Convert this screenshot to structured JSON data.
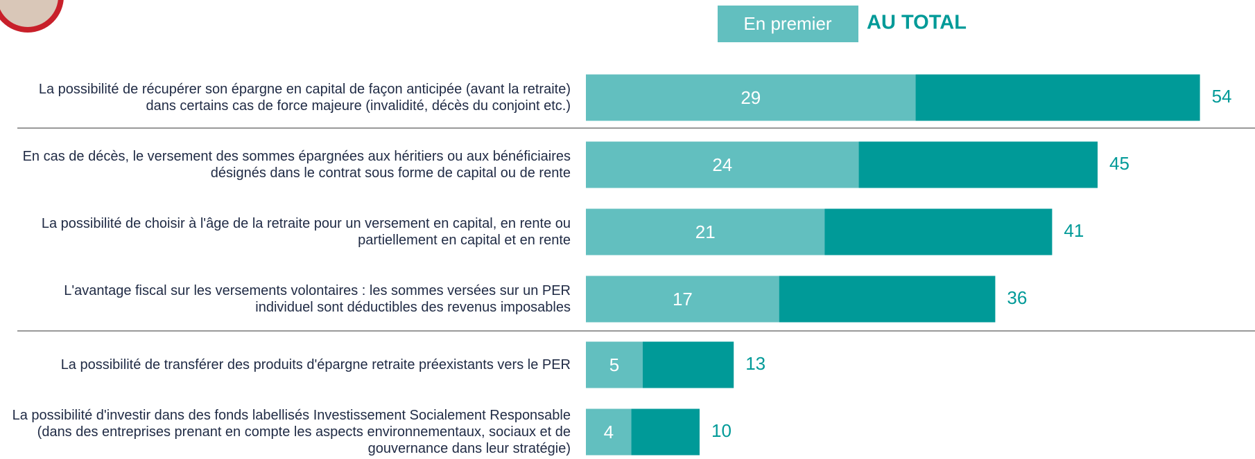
{
  "chart_data": {
    "type": "overlap-bar",
    "legend": [
      "En premier",
      "AU TOTAL"
    ],
    "categories": [
      "La possibilité de récupérer son épargne en capital de façon anticipée (avant la retraite) dans certains cas de force majeure (invalidité, décès du conjoint etc.)",
      "En cas de décès, le versement des sommes épargnées aux héritiers ou aux bénéficiaires désignés dans le contrat sous forme de capital ou de rente",
      "La possibilité de choisir à l'âge de la retraite pour un versement en capital, en rente ou partiellement en capital et en rente",
      "L'avantage fiscal sur les versements volontaires : les sommes versées sur un PER individuel sont déductibles des revenus imposables",
      "La possibilité de transférer des produits d'épargne retraite préexistants vers le PER",
      "La possibilité d'investir dans des fonds labellisés Investissement Socialement Responsable (dans des entreprises prenant en compte les aspects environnementaux, sociaux et de gouvernance dans leur stratégie)"
    ],
    "series": [
      {
        "name": "AU TOTAL",
        "color": "#009a98",
        "values": [
          54,
          45,
          41,
          36,
          13,
          10
        ]
      },
      {
        "name": "En premier",
        "color": "#62bfbf",
        "values": [
          29,
          24,
          21,
          17,
          5,
          4
        ]
      }
    ]
  }
}
